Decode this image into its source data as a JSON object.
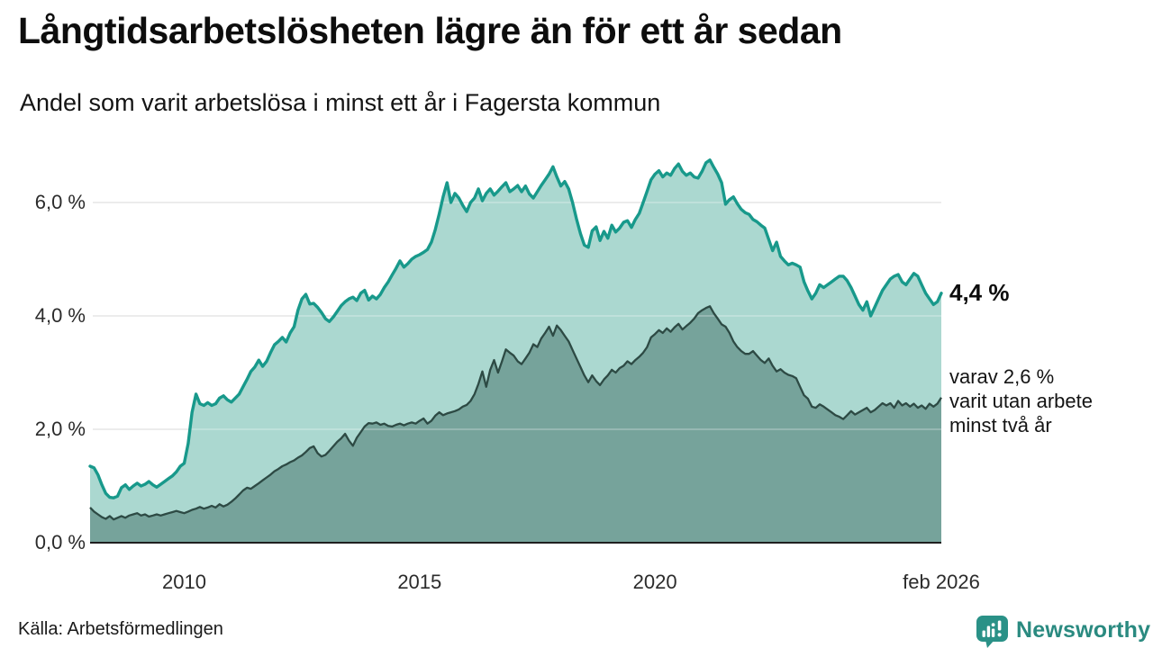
{
  "header": {
    "title": "Långtidsarbetslösheten lägre än för ett år sedan",
    "subtitle": "Andel som varit arbetslösa i minst ett år i Fagersta kommun"
  },
  "chart": {
    "y_ticks": [
      {
        "label": "6,0 %",
        "value": 6
      },
      {
        "label": "4,0 %",
        "value": 4
      },
      {
        "label": "2,0 %",
        "value": 2
      },
      {
        "label": "0,0 %",
        "value": 0
      }
    ],
    "x_ticks": [
      {
        "label": "2010",
        "month_index": 24
      },
      {
        "label": "2015",
        "month_index": 84
      },
      {
        "label": "2020",
        "month_index": 144
      },
      {
        "label": "feb 2026",
        "month_index": 217
      }
    ],
    "colors": {
      "line_1yr": "#18998b",
      "fill_1yr": "#abd8d0",
      "line_2yr": "#2d4a44",
      "fill_2yr": "#76a39b",
      "grid": "#dcdcdc",
      "grid_over_fill": "rgba(255,255,255,0.32)",
      "axis": "#1f1f1f",
      "brand": "#2a8a80"
    }
  },
  "annotations": {
    "primary": "4,4 %",
    "secondary": [
      "varav 2,6 %",
      "varit utan arbete",
      "minst två år"
    ]
  },
  "footer": {
    "source": "Källa: Arbetsförmedlingen",
    "brand": "Newsworthy"
  },
  "chart_data": {
    "type": "area",
    "title": "Långtidsarbetslösheten lägre än för ett år sedan",
    "subtitle": "Andel som varit arbetslösa i minst ett år i Fagersta kommun",
    "unit": "%",
    "x_start": "2008-01",
    "x_end": "2026-02",
    "frequency": "monthly",
    "ylim": [
      0,
      6.9
    ],
    "grid": true,
    "legend_position": "end-of-line-annotations",
    "series": [
      {
        "name": "Arbetslösa minst ett år",
        "last_value_label": "4,4 %",
        "values": [
          1.35,
          1.32,
          1.2,
          1.02,
          0.87,
          0.8,
          0.79,
          0.82,
          0.97,
          1.02,
          0.94,
          1.0,
          1.05,
          1.0,
          1.03,
          1.08,
          1.02,
          0.98,
          1.03,
          1.08,
          1.13,
          1.18,
          1.25,
          1.35,
          1.4,
          1.75,
          2.3,
          2.62,
          2.45,
          2.42,
          2.47,
          2.42,
          2.45,
          2.55,
          2.59,
          2.52,
          2.48,
          2.55,
          2.62,
          2.75,
          2.88,
          3.02,
          3.1,
          3.22,
          3.11,
          3.2,
          3.35,
          3.49,
          3.55,
          3.62,
          3.54,
          3.7,
          3.81,
          4.1,
          4.3,
          4.38,
          4.21,
          4.22,
          4.15,
          4.06,
          3.95,
          3.9,
          3.98,
          4.08,
          4.18,
          4.25,
          4.3,
          4.33,
          4.27,
          4.4,
          4.45,
          4.28,
          4.35,
          4.3,
          4.38,
          4.5,
          4.6,
          4.72,
          4.84,
          4.97,
          4.86,
          4.92,
          5.0,
          5.05,
          5.08,
          5.12,
          5.17,
          5.3,
          5.52,
          5.8,
          6.1,
          6.35,
          6.0,
          6.16,
          6.08,
          5.95,
          5.84,
          6.0,
          6.08,
          6.24,
          6.03,
          6.16,
          6.24,
          6.13,
          6.2,
          6.28,
          6.35,
          6.19,
          6.24,
          6.3,
          6.19,
          6.29,
          6.15,
          6.08,
          6.19,
          6.3,
          6.4,
          6.5,
          6.63,
          6.45,
          6.29,
          6.37,
          6.24,
          6.0,
          5.71,
          5.45,
          5.25,
          5.21,
          5.5,
          5.57,
          5.33,
          5.49,
          5.37,
          5.6,
          5.48,
          5.55,
          5.65,
          5.68,
          5.56,
          5.7,
          5.81,
          6.0,
          6.2,
          6.4,
          6.5,
          6.56,
          6.45,
          6.52,
          6.48,
          6.6,
          6.68,
          6.55,
          6.48,
          6.52,
          6.45,
          6.43,
          6.55,
          6.7,
          6.75,
          6.62,
          6.5,
          6.35,
          5.97,
          6.05,
          6.1,
          5.98,
          5.88,
          5.82,
          5.79,
          5.7,
          5.66,
          5.6,
          5.55,
          5.35,
          5.15,
          5.3,
          5.05,
          4.97,
          4.9,
          4.93,
          4.9,
          4.86,
          4.6,
          4.44,
          4.3,
          4.4,
          4.55,
          4.5,
          4.55,
          4.6,
          4.65,
          4.7,
          4.7,
          4.62,
          4.5,
          4.35,
          4.2,
          4.1,
          4.25,
          4.0,
          4.15,
          4.3,
          4.45,
          4.55,
          4.65,
          4.7,
          4.73,
          4.6,
          4.55,
          4.65,
          4.75,
          4.7,
          4.55,
          4.4,
          4.3,
          4.2,
          4.25,
          4.4
        ]
      },
      {
        "name": "varav utan arbete minst två år",
        "last_value_label": "2,6 %",
        "values": [
          0.62,
          0.55,
          0.5,
          0.45,
          0.42,
          0.47,
          0.41,
          0.44,
          0.47,
          0.44,
          0.48,
          0.5,
          0.52,
          0.48,
          0.5,
          0.46,
          0.48,
          0.5,
          0.48,
          0.5,
          0.52,
          0.54,
          0.56,
          0.54,
          0.52,
          0.55,
          0.58,
          0.6,
          0.63,
          0.6,
          0.62,
          0.65,
          0.62,
          0.68,
          0.64,
          0.67,
          0.72,
          0.78,
          0.85,
          0.92,
          0.97,
          0.95,
          1.0,
          1.05,
          1.1,
          1.15,
          1.2,
          1.26,
          1.3,
          1.35,
          1.38,
          1.42,
          1.45,
          1.5,
          1.54,
          1.6,
          1.67,
          1.7,
          1.58,
          1.52,
          1.55,
          1.62,
          1.7,
          1.78,
          1.84,
          1.92,
          1.8,
          1.71,
          1.85,
          1.95,
          2.05,
          2.11,
          2.1,
          2.12,
          2.08,
          2.1,
          2.06,
          2.05,
          2.08,
          2.1,
          2.07,
          2.1,
          2.12,
          2.1,
          2.15,
          2.19,
          2.1,
          2.15,
          2.24,
          2.3,
          2.25,
          2.28,
          2.3,
          2.32,
          2.35,
          2.4,
          2.43,
          2.5,
          2.62,
          2.8,
          3.02,
          2.75,
          3.05,
          3.22,
          3.0,
          3.2,
          3.41,
          3.35,
          3.3,
          3.2,
          3.15,
          3.25,
          3.35,
          3.5,
          3.45,
          3.6,
          3.7,
          3.81,
          3.65,
          3.83,
          3.75,
          3.65,
          3.55,
          3.4,
          3.25,
          3.1,
          2.95,
          2.83,
          2.95,
          2.85,
          2.78,
          2.88,
          2.95,
          3.05,
          3.0,
          3.08,
          3.12,
          3.2,
          3.15,
          3.22,
          3.28,
          3.35,
          3.45,
          3.62,
          3.68,
          3.75,
          3.7,
          3.78,
          3.72,
          3.8,
          3.86,
          3.76,
          3.82,
          3.88,
          3.95,
          4.05,
          4.1,
          4.14,
          4.17,
          4.05,
          3.95,
          3.85,
          3.81,
          3.7,
          3.55,
          3.45,
          3.38,
          3.33,
          3.33,
          3.38,
          3.3,
          3.22,
          3.17,
          3.25,
          3.12,
          3.02,
          3.06,
          3.0,
          2.96,
          2.94,
          2.9,
          2.75,
          2.6,
          2.54,
          2.4,
          2.38,
          2.44,
          2.4,
          2.35,
          2.3,
          2.25,
          2.22,
          2.18,
          2.25,
          2.32,
          2.26,
          2.3,
          2.34,
          2.38,
          2.3,
          2.34,
          2.4,
          2.46,
          2.42,
          2.46,
          2.38,
          2.5,
          2.42,
          2.46,
          2.4,
          2.45,
          2.38,
          2.42,
          2.36,
          2.45,
          2.4,
          2.45,
          2.56
        ]
      }
    ]
  }
}
